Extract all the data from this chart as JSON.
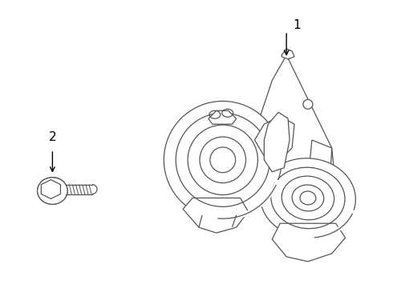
{
  "background_color": "#ffffff",
  "line_color": "#555555",
  "label_color": "#000000",
  "item1_label": "1",
  "item2_label": "2",
  "lw": 0.9
}
